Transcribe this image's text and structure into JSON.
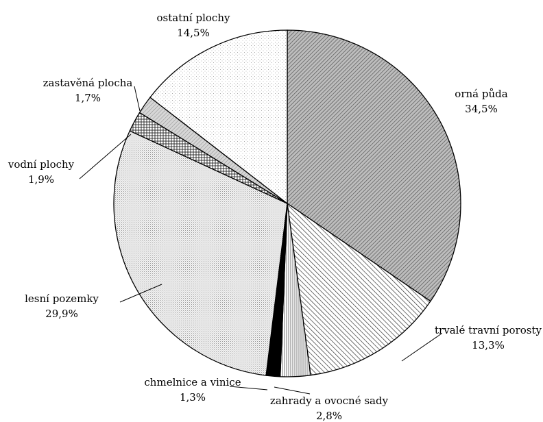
{
  "chart_data": {
    "type": "pie",
    "title": "",
    "categories": [
      "orná půda",
      "trvalé travní porosty",
      "zahrady a ovocné sady",
      "chmelnice a vinice",
      "lesní pozemky",
      "vodní plochy",
      "zastavěná plocha",
      "ostatní plochy"
    ],
    "values": [
      34.5,
      13.3,
      2.8,
      1.3,
      29.9,
      1.9,
      1.7,
      14.5
    ],
    "value_labels": [
      "34,5%",
      "13,3%",
      "2,8%",
      "1,3%",
      "29,9%",
      "1,9%",
      "1,7%",
      "14,5%"
    ],
    "unit": "%",
    "start_angle": "12 o'clock",
    "direction": "clockwise",
    "legend": "none",
    "fill_patterns": [
      "diagonal-dense-dark",
      "diagonal-wide",
      "vertical-lines",
      "solid-black",
      "fine-dots",
      "cross-hatch",
      "diagonal-light-gray",
      "sparse-dots"
    ]
  }
}
